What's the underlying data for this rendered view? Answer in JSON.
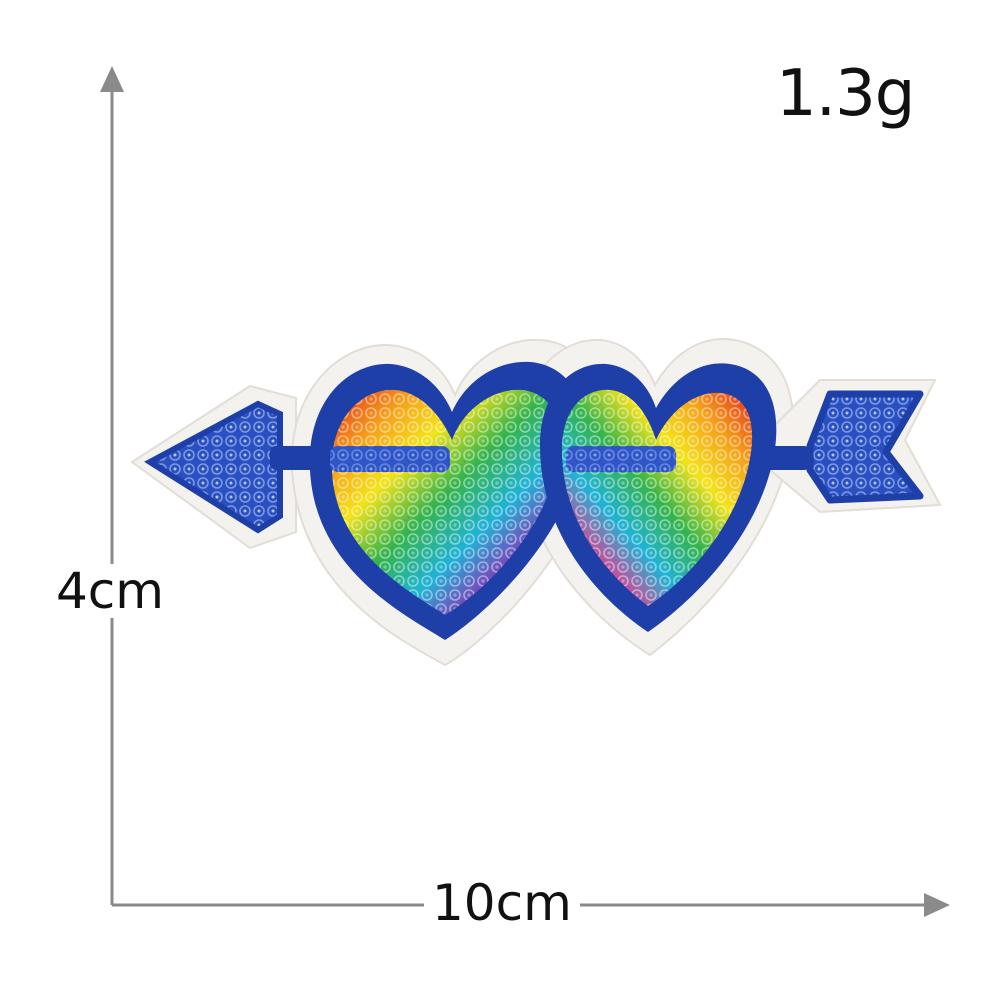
{
  "labels": {
    "weight": "1.3g",
    "height": "4cm",
    "width": "10cm"
  },
  "colors": {
    "background": "#ffffff",
    "dimension_line": "#8a8a8a",
    "patch_border": "#f4f2ee",
    "embroidery_blue": "#1f3fa8",
    "sequin_palette": [
      "#e2261f",
      "#f6a11a",
      "#f3e31a",
      "#35b44a",
      "#1fb3d6",
      "#1f3fa8",
      "#8e2fb5",
      "#e83a8e"
    ]
  },
  "subject": {
    "name": "double-heart-arrow-sequin-patch"
  }
}
